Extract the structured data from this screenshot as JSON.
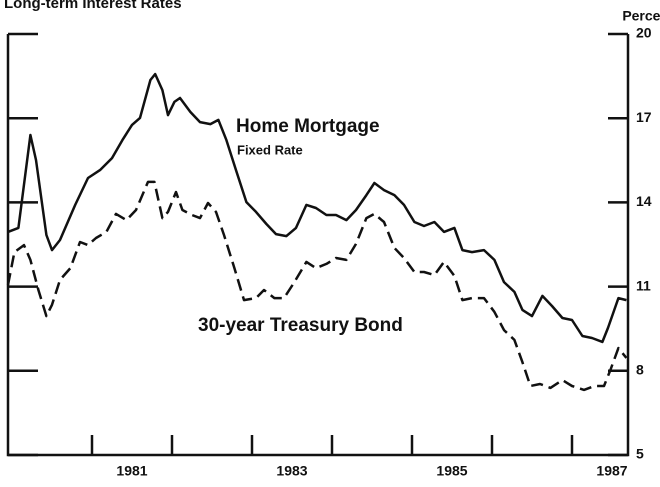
{
  "chart_data": {
    "type": "line",
    "title": "Long-term Interest Rates",
    "y_axis_label": "Percent",
    "annotations": [
      "Fixed Rate"
    ],
    "xlim": [
      1979.95,
      1987.7
    ],
    "xticks": [
      1981,
      1982,
      1983,
      1984,
      1985,
      1986,
      1987
    ],
    "xtick_labels": [
      1981,
      1983,
      1985,
      1987
    ],
    "ylim": [
      5,
      20
    ],
    "yticks": [
      5,
      8,
      11,
      14,
      17,
      20
    ],
    "series": [
      {
        "name": "Home Mortgage",
        "color": "#111111",
        "dash": false,
        "x": [
          1979.95,
          1980.08,
          1980.23,
          1980.3,
          1980.43,
          1980.5,
          1980.6,
          1980.79,
          1980.95,
          1981.1,
          1981.25,
          1981.38,
          1981.5,
          1981.6,
          1981.73,
          1981.79,
          1981.88,
          1981.95,
          1982.03,
          1982.1,
          1982.23,
          1982.35,
          1982.48,
          1982.58,
          1982.68,
          1982.8,
          1982.93,
          1983.05,
          1983.18,
          1983.3,
          1983.43,
          1983.55,
          1983.68,
          1983.8,
          1983.93,
          1984.05,
          1984.18,
          1984.3,
          1984.43,
          1984.53,
          1984.65,
          1984.78,
          1984.9,
          1985.03,
          1985.15,
          1985.28,
          1985.4,
          1985.53,
          1985.63,
          1985.75,
          1985.9,
          1986.03,
          1986.15,
          1986.28,
          1986.38,
          1986.5,
          1986.63,
          1986.75,
          1986.88,
          1987.0,
          1987.13,
          1987.25,
          1987.38,
          1987.45,
          1987.58,
          1987.68
        ],
        "values": [
          12.95,
          13.09,
          16.4,
          15.51,
          12.84,
          12.3,
          12.66,
          13.91,
          14.87,
          15.15,
          15.58,
          16.22,
          16.76,
          17.01,
          18.36,
          18.57,
          18.0,
          17.11,
          17.58,
          17.72,
          17.22,
          16.86,
          16.79,
          16.94,
          16.22,
          15.15,
          14.01,
          13.66,
          13.23,
          12.87,
          12.8,
          13.09,
          13.91,
          13.8,
          13.55,
          13.55,
          13.37,
          13.73,
          14.26,
          14.69,
          14.44,
          14.26,
          13.91,
          13.3,
          13.16,
          13.3,
          12.95,
          13.09,
          12.3,
          12.23,
          12.3,
          11.95,
          11.16,
          10.81,
          10.17,
          9.95,
          10.67,
          10.31,
          9.88,
          9.81,
          9.24,
          9.17,
          9.03,
          9.53,
          10.59,
          10.52
        ]
      },
      {
        "name": "30-year Treasury Bond",
        "color": "#111111",
        "dash": true,
        "x": [
          1979.95,
          1980.03,
          1980.15,
          1980.23,
          1980.33,
          1980.43,
          1980.5,
          1980.6,
          1980.73,
          1980.85,
          1980.95,
          1981.05,
          1981.18,
          1981.3,
          1981.43,
          1981.55,
          1981.7,
          1981.78,
          1981.88,
          1981.95,
          1982.05,
          1982.13,
          1982.25,
          1982.35,
          1982.45,
          1982.55,
          1982.65,
          1982.78,
          1982.9,
          1983.05,
          1983.15,
          1983.28,
          1983.4,
          1983.53,
          1983.68,
          1983.8,
          1983.93,
          1984.05,
          1984.18,
          1984.3,
          1984.43,
          1984.53,
          1984.65,
          1984.78,
          1984.9,
          1985.03,
          1985.15,
          1985.28,
          1985.4,
          1985.53,
          1985.63,
          1985.75,
          1985.9,
          1986.03,
          1986.15,
          1986.28,
          1986.38,
          1986.48,
          1986.6,
          1986.73,
          1986.88,
          1987.0,
          1987.15,
          1987.28,
          1987.4,
          1987.48,
          1987.58,
          1987.68
        ],
        "values": [
          11.06,
          12.23,
          12.48,
          11.95,
          10.88,
          9.95,
          10.35,
          11.24,
          11.66,
          12.59,
          12.48,
          12.73,
          12.95,
          13.59,
          13.37,
          13.73,
          14.73,
          14.73,
          13.44,
          13.66,
          14.37,
          13.73,
          13.55,
          13.44,
          13.98,
          13.66,
          12.84,
          11.66,
          10.52,
          10.59,
          10.88,
          10.59,
          10.59,
          11.16,
          11.88,
          11.66,
          11.81,
          12.02,
          11.95,
          12.52,
          13.44,
          13.59,
          13.3,
          12.38,
          12.02,
          11.52,
          11.52,
          11.41,
          11.88,
          11.38,
          10.52,
          10.59,
          10.59,
          10.1,
          9.45,
          9.1,
          8.31,
          7.46,
          7.53,
          7.39,
          7.67,
          7.46,
          7.32,
          7.46,
          7.46,
          8.03,
          8.81,
          8.46
        ]
      }
    ]
  }
}
